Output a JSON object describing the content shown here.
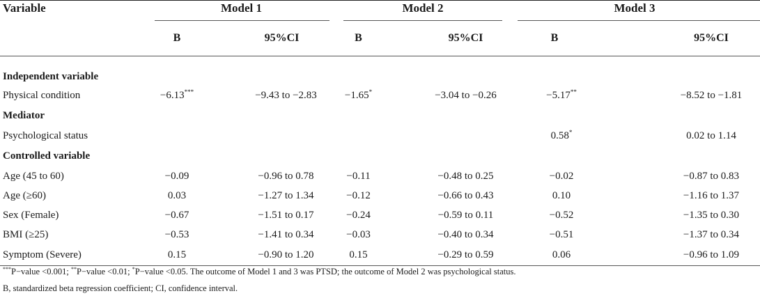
{
  "header": {
    "variable": "Variable",
    "model1": "Model 1",
    "model2": "Model 2",
    "model3": "Model 3",
    "b": "B",
    "ci": "95%CI"
  },
  "sections": {
    "independent": "Independent variable",
    "mediator": "Mediator",
    "controlled": "Controlled variable"
  },
  "rows": {
    "physical": {
      "name": "Physical condition",
      "b1": "−6.13",
      "b1_sig": "***",
      "ci1": "−9.43 to −2.83",
      "b2": "−1.65",
      "b2_sig": "*",
      "ci2": "−3.04 to −0.26",
      "b3": "−5.17",
      "b3_sig": "**",
      "ci3": "−8.52 to −1.81"
    },
    "psych": {
      "name": "Psychological status",
      "b1": "",
      "ci1": "",
      "b2": "",
      "ci2": "",
      "b3": "0.58",
      "b3_sig": "*",
      "ci3": "0.02 to 1.14"
    },
    "age45": {
      "name": "Age (45 to 60)",
      "b1": "−0.09",
      "ci1": "−0.96 to 0.78",
      "b2": "−0.11",
      "ci2": "−0.48 to 0.25",
      "b3": "−0.02",
      "ci3": "−0.87 to 0.83"
    },
    "age60": {
      "name": "Age (≥60)",
      "b1": "0.03",
      "ci1": "−1.27 to 1.34",
      "b2": "−0.12",
      "ci2": "−0.66 to 0.43",
      "b3": "0.10",
      "ci3": "−1.16 to 1.37"
    },
    "sex": {
      "name": "Sex (Female)",
      "b1": "−0.67",
      "ci1": "−1.51 to 0.17",
      "b2": "−0.24",
      "ci2": "−0.59 to 0.11",
      "b3": "−0.52",
      "ci3": "−1.35 to 0.30"
    },
    "bmi": {
      "name": "BMI (≥25)",
      "b1": "−0.53",
      "ci1": "−1.41 to 0.34",
      "b2": "−0.03",
      "ci2": "−0.40 to 0.34",
      "b3": "−0.51",
      "ci3": "−1.37 to 0.34"
    },
    "symptom": {
      "name": "Symptom (Severe)",
      "b1": "0.15",
      "ci1": "−0.90 to 1.20",
      "b2": "0.15",
      "ci2": "−0.29 to 0.59",
      "b3": "0.06",
      "ci3": "−0.96 to 1.09"
    }
  },
  "notes": {
    "sig1": "***",
    "p1": "P−value <0.001; ",
    "sig2": "**",
    "p2": "P−value <0.01; ",
    "sig3": "*",
    "p3": "P−value <0.05. The outcome of Model 1 and 3 was PTSD; the outcome of Model 2 was psychological status.",
    "line2": "B, standardized beta regression coefficient; CI, confidence interval."
  }
}
